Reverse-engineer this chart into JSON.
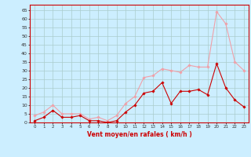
{
  "x": [
    0,
    1,
    2,
    3,
    4,
    5,
    6,
    7,
    8,
    9,
    10,
    11,
    12,
    13,
    14,
    15,
    16,
    17,
    18,
    19,
    20,
    21,
    22,
    23
  ],
  "rafales": [
    4,
    6,
    10,
    5,
    5,
    5,
    2,
    3,
    1,
    4,
    11,
    15,
    26,
    27,
    31,
    30,
    29,
    33,
    32,
    32,
    64,
    57,
    35,
    30
  ],
  "moyen": [
    1,
    3,
    7,
    3,
    3,
    4,
    1,
    1,
    0,
    1,
    6,
    10,
    17,
    18,
    23,
    11,
    18,
    18,
    19,
    16,
    34,
    20,
    13,
    9
  ],
  "color_rafales": "#f0a0a8",
  "color_moyen": "#cc0000",
  "bg_color": "#cceeff",
  "grid_color": "#aacccc",
  "xlabel": "Vent moyen/en rafales ( km/h )",
  "xlabel_color": "#cc0000",
  "yticks": [
    0,
    5,
    10,
    15,
    20,
    25,
    30,
    35,
    40,
    45,
    50,
    55,
    60,
    65
  ],
  "ylim": [
    0,
    68
  ],
  "xlim": [
    -0.5,
    23.5
  ],
  "axis_color": "#cc0000"
}
